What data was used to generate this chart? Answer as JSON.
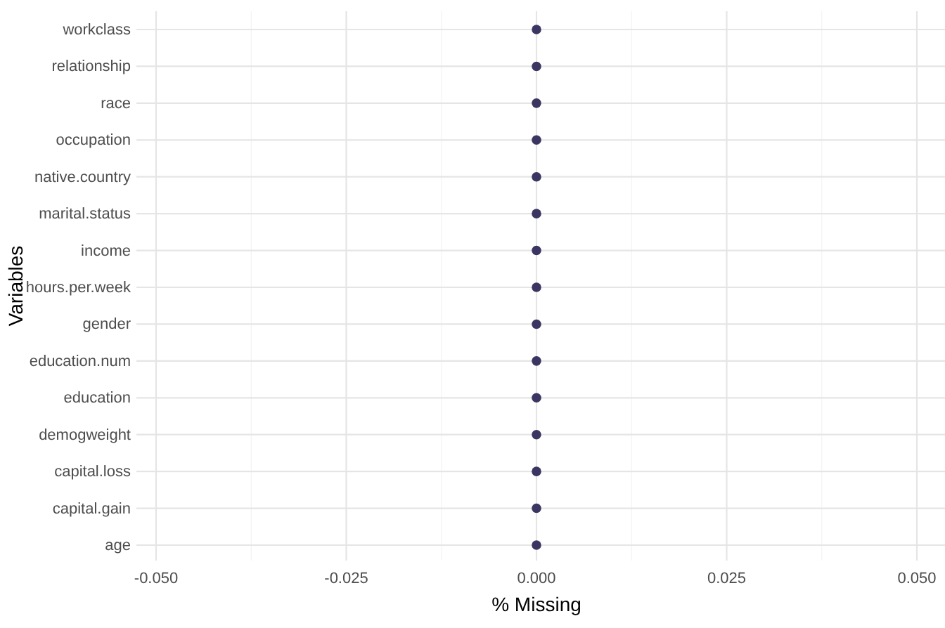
{
  "chart_data": {
    "type": "scatter",
    "orientation": "horizontal",
    "xlabel": "% Missing",
    "ylabel": "Variables",
    "categories": [
      "workclass",
      "relationship",
      "race",
      "occupation",
      "native.country",
      "marital.status",
      "income",
      "hours.per.week",
      "gender",
      "education.num",
      "education",
      "demogweight",
      "capital.loss",
      "capital.gain",
      "age"
    ],
    "values": [
      0,
      0,
      0,
      0,
      0,
      0,
      0,
      0,
      0,
      0,
      0,
      0,
      0,
      0,
      0
    ],
    "color": "#3b3561",
    "marker": "circle",
    "grid": true,
    "xlim": [
      -0.05,
      0.05
    ],
    "xticks": [
      {
        "value": -0.05,
        "label": "-0.050"
      },
      {
        "value": -0.0375,
        "label": null
      },
      {
        "value": -0.025,
        "label": "-0.025"
      },
      {
        "value": -0.0125,
        "label": null
      },
      {
        "value": 0,
        "label": "0.000"
      },
      {
        "value": 0.0125,
        "label": null
      },
      {
        "value": 0.025,
        "label": "0.025"
      },
      {
        "value": 0.0375,
        "label": null
      },
      {
        "value": 0.05,
        "label": "0.050"
      }
    ]
  }
}
